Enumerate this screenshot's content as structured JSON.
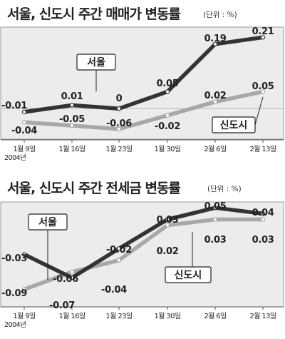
{
  "chart_data": [
    {
      "type": "line",
      "title": "서울, 신도시 주간 매매가 변동률",
      "unit_label": "(단위 : %)",
      "categories": [
        "1월 9일",
        "1월 16일",
        "1월 23일",
        "1월 30일",
        "2월 6일",
        "2월 13일"
      ],
      "year_label": "2004년",
      "ylim": [
        -0.09,
        0.24
      ],
      "zero_line": true,
      "series": [
        {
          "name": "서울",
          "color": "#333333",
          "values": [
            -0.01,
            0.01,
            0,
            0.05,
            0.19,
            0.21
          ],
          "labels": [
            "-0.01",
            "0.01",
            "0",
            "0.05",
            "0.19",
            "0.21"
          ]
        },
        {
          "name": "신도시",
          "color": "#a8a8a8",
          "values": [
            -0.04,
            -0.05,
            -0.06,
            -0.02,
            0.02,
            0.05
          ],
          "labels": [
            "-0.04",
            "-0.05",
            "-0.06",
            "-0.02",
            "0.02",
            "0.05"
          ]
        }
      ],
      "legend": [
        "서울",
        "신도시"
      ]
    },
    {
      "type": "line",
      "title": "서울, 신도시 주간 전세금 변동률",
      "unit_label": "(단위 : %)",
      "categories": [
        "1월 9일",
        "1월 16일",
        "1월 23일",
        "1월 30일",
        "2월 6일",
        "2월 13일"
      ],
      "year_label": "2004년",
      "ylim": [
        -0.12,
        0.06
      ],
      "zero_line": false,
      "series": [
        {
          "name": "서울",
          "color": "#333333",
          "values": [
            -0.03,
            -0.07,
            -0.02,
            0.03,
            0.05,
            0.04
          ],
          "labels": [
            "-0.03",
            "-0.07",
            "-0.02",
            "0.03",
            "0.05",
            "0.04"
          ]
        },
        {
          "name": "신도시",
          "color": "#a8a8a8",
          "values": [
            -0.09,
            -0.06,
            -0.04,
            0.02,
            0.03,
            0.03
          ],
          "labels": [
            "-0.09",
            "-0.06",
            "-0.04",
            "0.02",
            "0.03",
            "0.03"
          ]
        }
      ],
      "legend": [
        "서울",
        "신도시"
      ]
    }
  ]
}
